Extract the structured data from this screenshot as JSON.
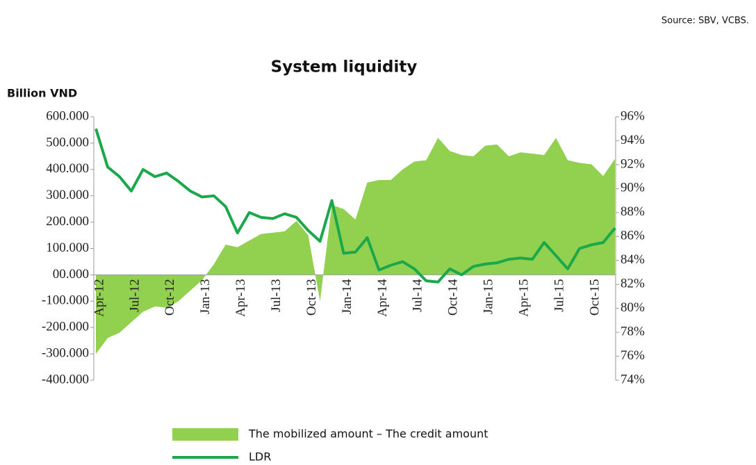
{
  "chart_data": {
    "type": "area",
    "title": "System liquidity",
    "source": "Source: SBV, VCBS.",
    "ylabel": "Billion VND",
    "categories": [
      "Apr-12",
      null,
      null,
      "Jul-12",
      null,
      null,
      "Oct-12",
      null,
      null,
      "Jan-13",
      null,
      null,
      "Apr-13",
      null,
      null,
      "Jul-13",
      null,
      null,
      "Oct-13",
      null,
      null,
      "Jan-14",
      null,
      null,
      "Apr-14",
      null,
      null,
      "Jul-14",
      null,
      null,
      "Oct-14",
      null,
      null,
      "Jan-15",
      null,
      null,
      "Apr-15",
      null,
      null,
      "Jul-15",
      null,
      null,
      "Oct-15",
      null,
      null
    ],
    "series": [
      {
        "name": "The mobilized amount – The credit amount",
        "type": "area",
        "color": "#92d050",
        "values": [
          -300000,
          -240000,
          -220000,
          -180000,
          -140000,
          -120000,
          -125000,
          -100000,
          -60000,
          -20000,
          40000,
          115000,
          105000,
          130000,
          155000,
          160000,
          165000,
          205000,
          150000,
          -100000,
          265000,
          250000,
          210000,
          350000,
          360000,
          360000,
          400000,
          430000,
          435000,
          520000,
          470000,
          455000,
          450000,
          490000,
          495000,
          450000,
          465000,
          460000,
          455000,
          520000,
          435000,
          425000,
          420000,
          375000,
          440000
        ]
      },
      {
        "name": "LDR",
        "type": "line",
        "color": "#1aa84a",
        "axis": "y2",
        "values": [
          95,
          91.8,
          91,
          89.8,
          91.6,
          91,
          91.3,
          90.6,
          89.8,
          89.3,
          89.4,
          88.5,
          86.3,
          88,
          87.6,
          87.5,
          87.9,
          87.6,
          86.5,
          85.6,
          89,
          84.6,
          84.7,
          85.9,
          83.2,
          83.6,
          83.9,
          83.3,
          82.3,
          82.2,
          83.3,
          82.8,
          83.5,
          83.7,
          83.8,
          84.1,
          84.2,
          84.1,
          85.5,
          84.4,
          83.3,
          85,
          85.3,
          85.5,
          86.7
        ]
      }
    ],
    "ylim": [
      -400000,
      600000
    ],
    "yticks": [
      {
        "value": -400000,
        "label": "-400.000"
      },
      {
        "value": -300000,
        "label": "-300.000"
      },
      {
        "value": -200000,
        "label": "-200.000"
      },
      {
        "value": -100000,
        "label": "-100.000"
      },
      {
        "value": 0,
        "label": "00.000"
      },
      {
        "value": 100000,
        "label": "100.000"
      },
      {
        "value": 200000,
        "label": "200.000"
      },
      {
        "value": 300000,
        "label": "300.000"
      },
      {
        "value": 400000,
        "label": "400.000"
      },
      {
        "value": 500000,
        "label": "500.000"
      },
      {
        "value": 600000,
        "label": "600.000"
      }
    ],
    "y2lim": [
      74,
      96
    ],
    "y2ticks": [
      {
        "value": 74,
        "label": "74%"
      },
      {
        "value": 76,
        "label": "76%"
      },
      {
        "value": 78,
        "label": "78%"
      },
      {
        "value": 80,
        "label": "80%"
      },
      {
        "value": 82,
        "label": "82%"
      },
      {
        "value": 84,
        "label": "84%"
      },
      {
        "value": 86,
        "label": "86%"
      },
      {
        "value": 88,
        "label": "88%"
      },
      {
        "value": 90,
        "label": "90%"
      },
      {
        "value": 92,
        "label": "92%"
      },
      {
        "value": 94,
        "label": "94%"
      },
      {
        "value": 96,
        "label": "96%"
      }
    ]
  }
}
